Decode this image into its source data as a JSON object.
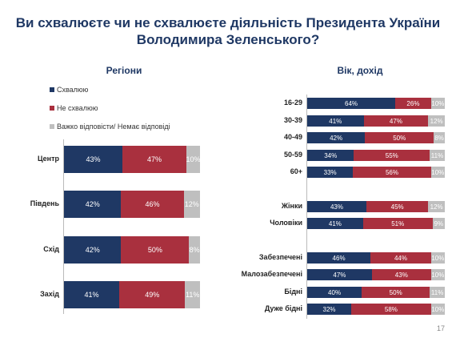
{
  "title": [
    "Ви схвалюєте чи не схвалюєте діяльність Президента України",
    "Володимира Зеленського?"
  ],
  "page_number": "17",
  "colors": {
    "approve": "#1F3864",
    "disapprove": "#A9303E",
    "hard": "#BFBFBF"
  },
  "chart_data": [
    {
      "type": "bar",
      "orientation": "horizontal",
      "stacked": true,
      "title": "Регіони",
      "legend": [
        "Схвалюю",
        "Не схвалюю",
        "Важко відповісти/ Немає відповіді"
      ],
      "legend_position": "top-left",
      "categories": [
        "Центр",
        "Південь",
        "Схід",
        "Захід"
      ],
      "series": [
        {
          "name": "Схвалюю",
          "values": [
            43,
            42,
            42,
            41
          ],
          "labels": [
            "43%",
            "42%",
            "42%",
            "41%"
          ]
        },
        {
          "name": "Не схвалюю",
          "values": [
            47,
            46,
            50,
            49
          ],
          "labels": [
            "47%",
            "46%",
            "50%",
            "49%"
          ]
        },
        {
          "name": "Важко відповісти/ Немає відповіді",
          "values": [
            10,
            12,
            8,
            11
          ],
          "labels": [
            "10%",
            "12%",
            "8%",
            "11%"
          ]
        }
      ]
    },
    {
      "type": "bar",
      "orientation": "horizontal",
      "stacked": true,
      "title": "Вік, дохід",
      "categories": [
        "16-29",
        "30-39",
        "40-49",
        "50-59",
        "60+",
        "Жінки",
        "Чоловіки",
        "Забезпечені",
        "Малозабезпечені",
        "Бідні",
        "Дуже бідні"
      ],
      "series": [
        {
          "name": "Схвалюю",
          "values": [
            64,
            41,
            42,
            34,
            33,
            43,
            41,
            46,
            47,
            40,
            32
          ],
          "labels": [
            "64%",
            "41%",
            "42%",
            "34%",
            "33%",
            "43%",
            "41%",
            "46%",
            "47%",
            "40%",
            "32%"
          ]
        },
        {
          "name": "Не схвалюю",
          "values": [
            26,
            47,
            50,
            55,
            56,
            45,
            51,
            44,
            43,
            50,
            58
          ],
          "labels": [
            "26%",
            "47%",
            "50%",
            "55%",
            "56%",
            "45%",
            "51%",
            "44%",
            "43%",
            "50%",
            "58%"
          ]
        },
        {
          "name": "Важко відповісти/ Немає відповіді",
          "values": [
            10,
            12,
            8,
            11,
            10,
            12,
            9,
            10,
            10,
            11,
            10
          ],
          "labels": [
            "10%",
            "12%",
            "8%",
            "11%",
            "10%",
            "12%",
            "9%",
            "10%",
            "10%",
            "11%",
            "10%"
          ]
        }
      ]
    }
  ]
}
